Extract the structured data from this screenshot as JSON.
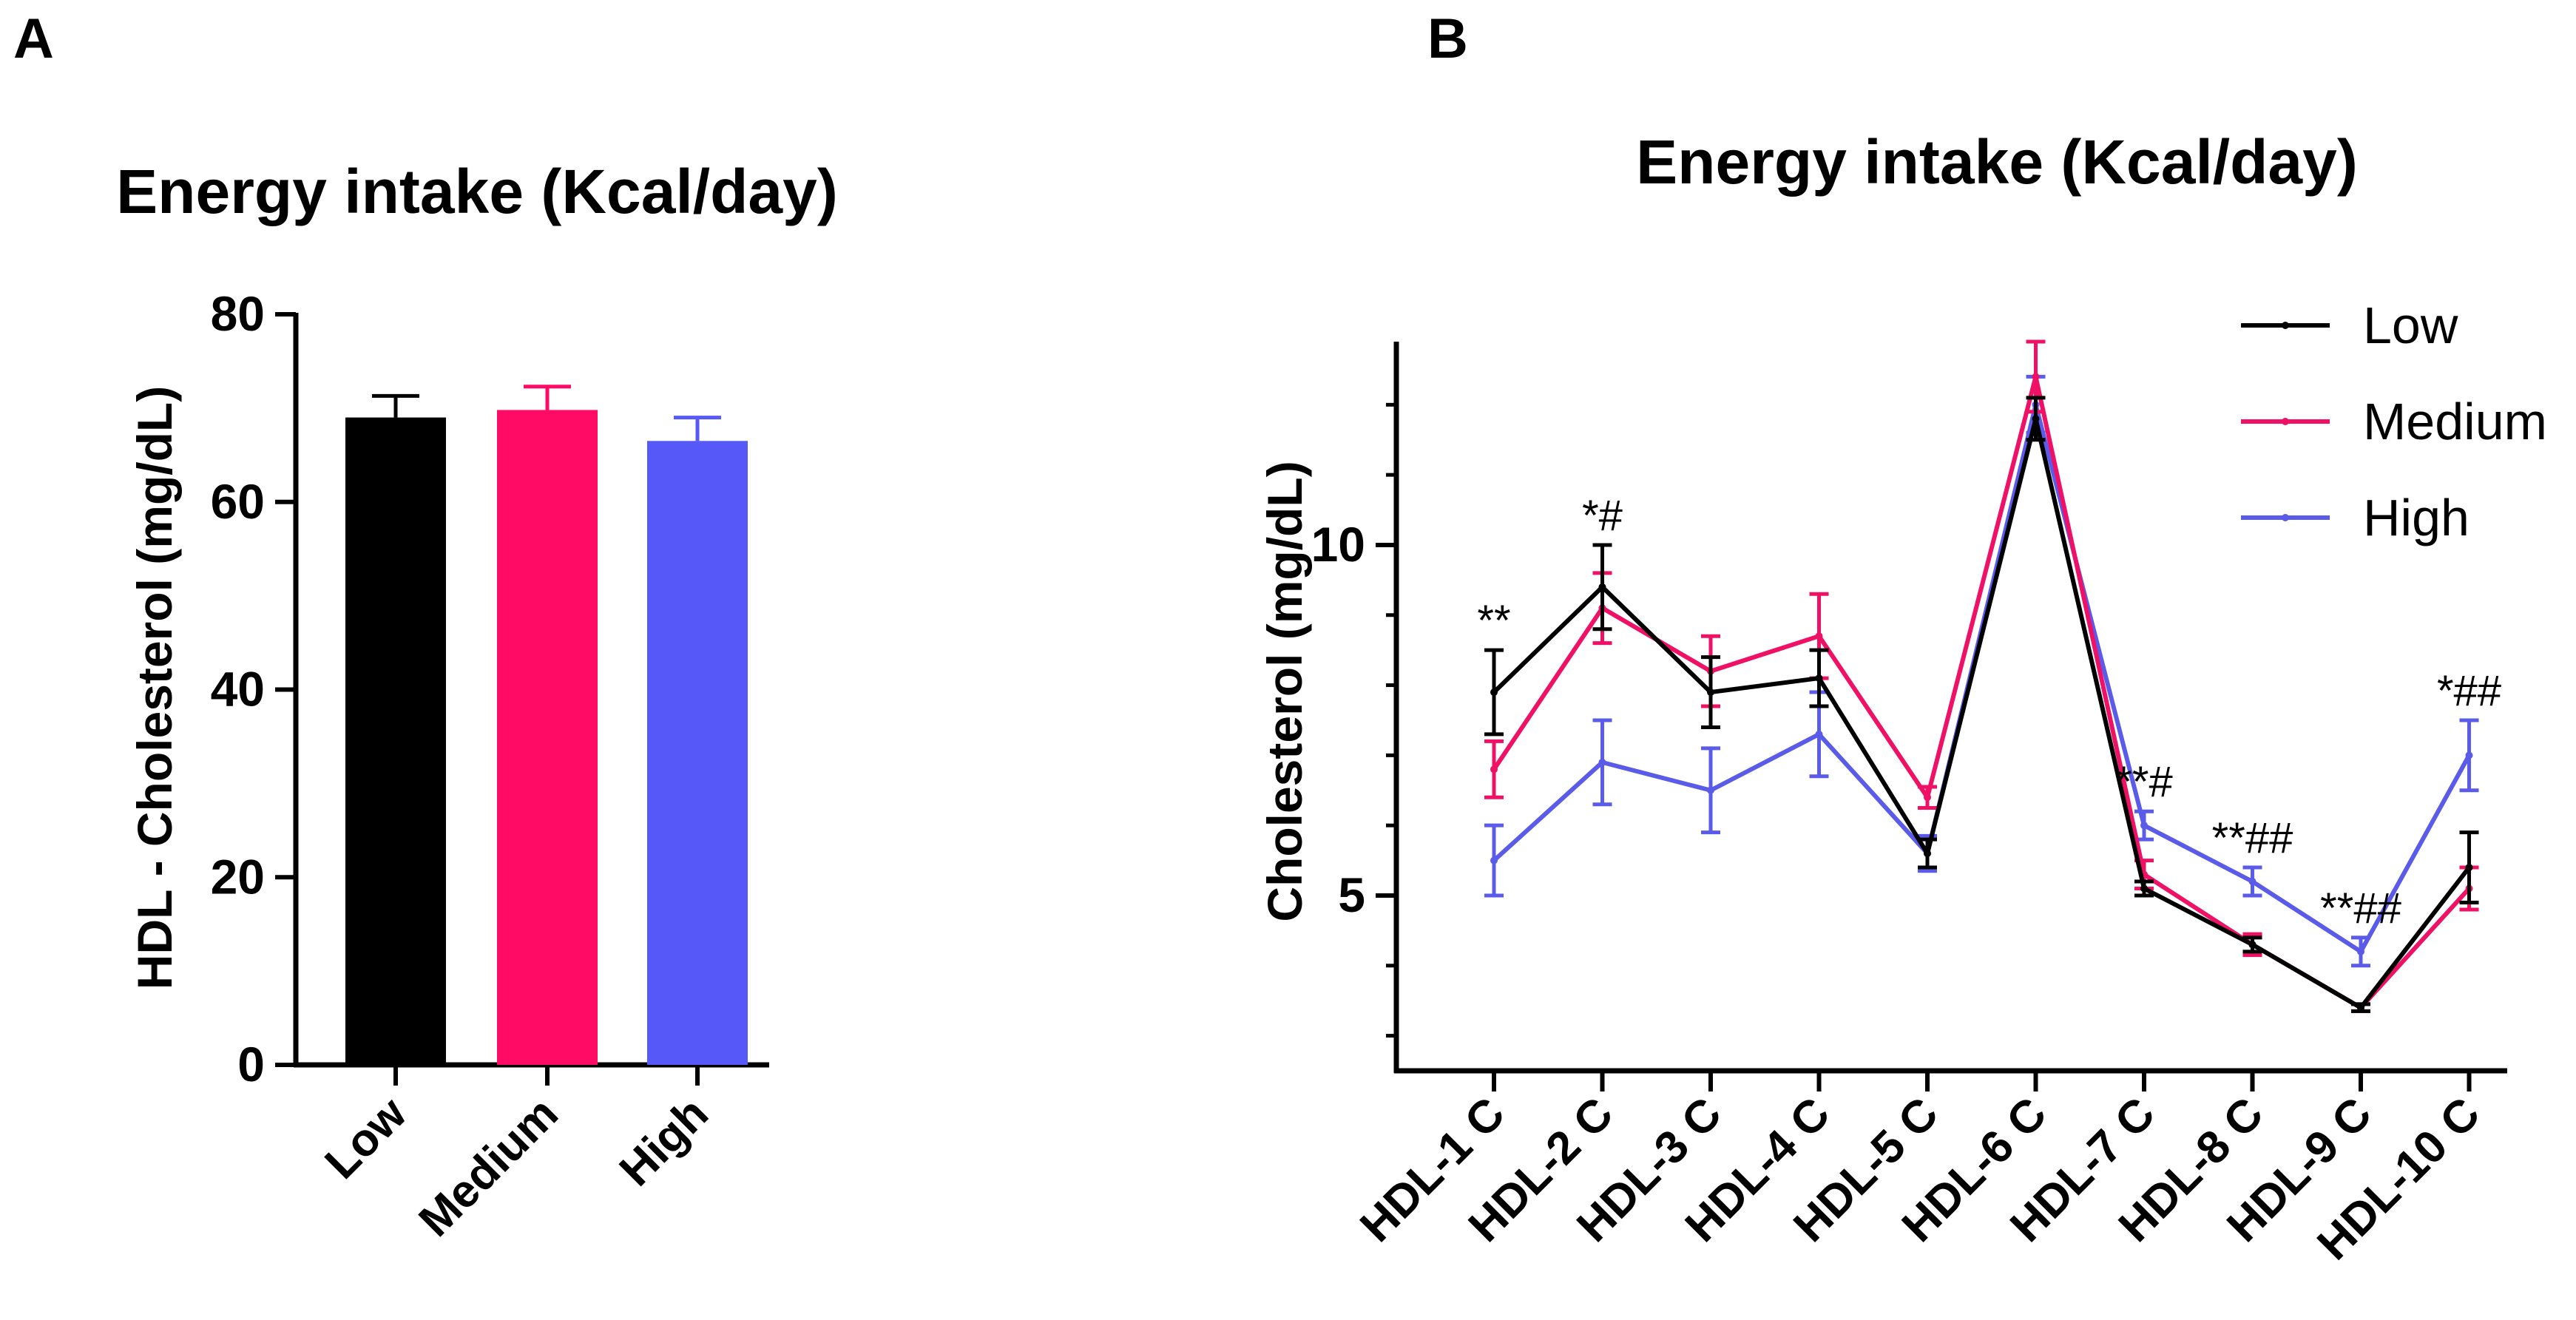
{
  "panels": {
    "a": {
      "letter": "A"
    },
    "b": {
      "letter": "B"
    }
  },
  "chart_data": [
    {
      "type": "bar",
      "panel": "A",
      "title": "Energy intake (Kcal/day)",
      "xlabel": "",
      "ylabel": "HDL - Cholesterol (mg/dL)",
      "ylim": [
        0,
        80
      ],
      "yticks": [
        "0",
        "20",
        "40",
        "60",
        "80"
      ],
      "categories": [
        "Low",
        "Medium",
        "High"
      ],
      "values": [
        69,
        69.8,
        66.5
      ],
      "errors": [
        2.3,
        2.5,
        2.5
      ],
      "colors": [
        "#000000",
        "#ff0a65",
        "#5658f8"
      ]
    },
    {
      "type": "line",
      "panel": "B",
      "title": "Energy intake (Kcal/day)",
      "xlabel": "",
      "ylabel": "Cholesterol (mg/dL)",
      "ylim": [
        2.5,
        12.9
      ],
      "yticks": [
        "5",
        "10"
      ],
      "categories": [
        "HDL-1 C",
        "HDL-2 C",
        "HDL-3 C",
        "HDL-4 C",
        "HDL-5 C",
        "HDL-6 C",
        "HDL-7 C",
        "HDL-8 C",
        "HDL-9 C",
        "HDL-10 C"
      ],
      "series": [
        {
          "name": "Low",
          "color": "#000000",
          "values": [
            7.9,
            9.4,
            7.9,
            8.1,
            5.6,
            11.8,
            5.1,
            4.3,
            3.4,
            5.4
          ],
          "errors": [
            0.6,
            0.6,
            0.5,
            0.4,
            0.2,
            0.3,
            0.1,
            0.1,
            0.05,
            0.5
          ]
        },
        {
          "name": "Medium",
          "color": "#ee1166",
          "values": [
            6.8,
            9.1,
            8.2,
            8.7,
            6.4,
            12.4,
            5.3,
            4.3,
            3.4,
            5.1
          ],
          "errors": [
            0.4,
            0.5,
            0.5,
            0.6,
            0.15,
            0.5,
            0.2,
            0.15,
            0.05,
            0.3
          ]
        },
        {
          "name": "High",
          "color": "#5b5bea",
          "values": [
            5.5,
            6.9,
            6.5,
            7.3,
            5.6,
            12.0,
            6.0,
            5.2,
            4.2,
            7.0
          ],
          "errors": [
            0.5,
            0.6,
            0.6,
            0.6,
            0.25,
            0.4,
            0.2,
            0.2,
            0.2,
            0.5
          ]
        }
      ],
      "annotations": [
        {
          "category": "HDL-1 C",
          "text": "**"
        },
        {
          "category": "HDL-2 C",
          "text": "*#"
        },
        {
          "category": "HDL-7 C",
          "text": "**#"
        },
        {
          "category": "HDL-8 C",
          "text": "**##"
        },
        {
          "category": "HDL-9 C",
          "text": "**##"
        },
        {
          "category": "HDL-10 C",
          "text": "*##"
        }
      ]
    }
  ]
}
